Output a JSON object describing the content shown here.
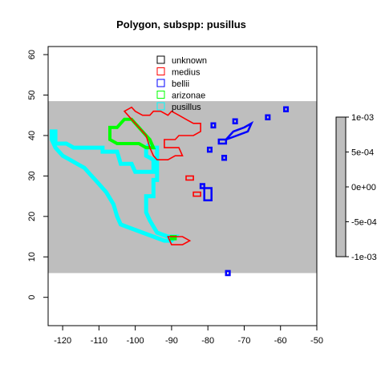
{
  "chart_data": {
    "type": "map",
    "title": "Polygon, subspp: pusillus",
    "xlabel": "",
    "ylabel": "",
    "xlim": [
      -124,
      -50
    ],
    "ylim": [
      -7,
      62
    ],
    "x_ticks": [
      -120,
      -110,
      -100,
      -90,
      -80,
      -70,
      -60,
      -50
    ],
    "y_ticks": [
      0,
      10,
      20,
      30,
      40,
      50,
      60
    ],
    "grid": false,
    "background_band": {
      "ymin": 6,
      "ymax": 48.5,
      "xmin": -124,
      "xmax": -50,
      "color": "#bebebe"
    },
    "legend": {
      "position": "top-center",
      "entries": [
        {
          "label": "unknown",
          "color": "#000000"
        },
        {
          "label": "medius",
          "color": "#ff0000"
        },
        {
          "label": "bellii",
          "color": "#0000ff"
        },
        {
          "label": "arizonae",
          "color": "#00ff00"
        },
        {
          "label": "pusillus",
          "color": "#00ffff"
        }
      ]
    },
    "colorbar": {
      "ticks": [
        "1e-03",
        "5e-04",
        "0e+00",
        "-5e-04",
        "-1e-03"
      ],
      "color": "#bebebe"
    },
    "series": [
      {
        "name": "pusillus",
        "color": "#00ffff",
        "polygons": [
          [
            [
              -123,
              41
            ],
            [
              -122,
              41
            ],
            [
              -122,
              38
            ],
            [
              -119,
              38
            ],
            [
              -117,
              37
            ],
            [
              -113,
              37
            ],
            [
              -109,
              37
            ],
            [
              -109,
              36
            ],
            [
              -105,
              36
            ],
            [
              -104,
              33
            ],
            [
              -101,
              33
            ],
            [
              -100,
              31
            ],
            [
              -95,
              31
            ],
            [
              -95,
              34
            ],
            [
              -97,
              35
            ],
            [
              -97,
              37
            ],
            [
              -96,
              38
            ],
            [
              -95,
              37
            ],
            [
              -94,
              37
            ],
            [
              -94,
              29
            ],
            [
              -95,
              29
            ],
            [
              -95,
              25
            ],
            [
              -97,
              25
            ],
            [
              -97,
              21
            ],
            [
              -96,
              19
            ],
            [
              -94,
              16
            ],
            [
              -91,
              15
            ],
            [
              -89,
              15
            ],
            [
              -90,
              14
            ],
            [
              -92,
              14
            ],
            [
              -95,
              15
            ],
            [
              -98,
              16
            ],
            [
              -104,
              18
            ],
            [
              -105,
              20
            ],
            [
              -106,
              23
            ],
            [
              -108,
              26
            ],
            [
              -111,
              29
            ],
            [
              -112,
              30
            ],
            [
              -114,
              32
            ],
            [
              -116,
              33
            ],
            [
              -118,
              34
            ],
            [
              -120,
              35
            ],
            [
              -122,
              37
            ],
            [
              -123,
              39
            ],
            [
              -123,
              41
            ]
          ]
        ]
      },
      {
        "name": "arizonae",
        "color": "#00ff00",
        "polygons": [
          [
            [
              -107,
              42
            ],
            [
              -105,
              42
            ],
            [
              -104,
              43
            ],
            [
              -103,
              44
            ],
            [
              -101,
              44
            ],
            [
              -100,
              43
            ],
            [
              -99,
              42
            ],
            [
              -97,
              40
            ],
            [
              -96,
              39
            ],
            [
              -95,
              37
            ],
            [
              -97,
              37
            ],
            [
              -99,
              38
            ],
            [
              -101,
              38
            ],
            [
              -103,
              38
            ],
            [
              -105,
              38
            ],
            [
              -107,
              39
            ],
            [
              -107,
              42
            ]
          ],
          [
            [
              -90,
              15
            ],
            [
              -89,
              15
            ],
            [
              -89,
              14.5
            ],
            [
              -90,
              14.5
            ],
            [
              -90,
              15
            ]
          ]
        ]
      },
      {
        "name": "medius",
        "color": "#ff0000",
        "polygons": [
          [
            [
              -103,
              46
            ],
            [
              -101,
              47
            ],
            [
              -100,
              46
            ],
            [
              -98,
              45
            ],
            [
              -96,
              45
            ],
            [
              -95,
              46
            ],
            [
              -93,
              46
            ],
            [
              -91,
              45
            ],
            [
              -90,
              46
            ],
            [
              -88,
              45
            ],
            [
              -86,
              44
            ],
            [
              -84,
              43
            ],
            [
              -82,
              43
            ],
            [
              -82,
              41
            ],
            [
              -84,
              40
            ],
            [
              -86,
              40
            ],
            [
              -88,
              40
            ],
            [
              -89,
              39
            ],
            [
              -92,
              39
            ],
            [
              -92,
              37
            ],
            [
              -90,
              37
            ],
            [
              -88,
              37
            ],
            [
              -87,
              35
            ],
            [
              -89,
              35
            ],
            [
              -91,
              34
            ],
            [
              -94,
              34
            ],
            [
              -95,
              35
            ],
            [
              -96,
              37
            ],
            [
              -97,
              40
            ],
            [
              -99,
              42
            ],
            [
              -101,
              44
            ],
            [
              -103,
              46
            ]
          ],
          [
            [
              -86,
              30
            ],
            [
              -84,
              30
            ],
            [
              -84,
              29
            ],
            [
              -86,
              29
            ],
            [
              -86,
              30
            ]
          ],
          [
            [
              -84,
              26
            ],
            [
              -82,
              26
            ],
            [
              -82,
              25
            ],
            [
              -84,
              25
            ],
            [
              -84,
              26
            ]
          ],
          [
            [
              -91,
              15
            ],
            [
              -87,
              15
            ],
            [
              -85,
              14
            ],
            [
              -87,
              13
            ],
            [
              -90,
              13
            ],
            [
              -91,
              15
            ]
          ]
        ]
      },
      {
        "name": "bellii",
        "color": "#0000ff",
        "polygons": [
          [
            [
              -59,
              47
            ],
            [
              -58,
              47
            ],
            [
              -58,
              46
            ],
            [
              -59,
              46
            ],
            [
              -59,
              47
            ]
          ],
          [
            [
              -64,
              45
            ],
            [
              -63,
              45
            ],
            [
              -63,
              44
            ],
            [
              -64,
              44
            ],
            [
              -64,
              45
            ]
          ],
          [
            [
              -73,
              44
            ],
            [
              -72,
              44
            ],
            [
              -72,
              43
            ],
            [
              -73,
              43
            ],
            [
              -73,
              44
            ]
          ],
          [
            [
              -70,
              42
            ],
            [
              -68,
              43
            ],
            [
              -69,
              41
            ],
            [
              -72,
              40
            ],
            [
              -75,
              39
            ],
            [
              -73,
              41
            ],
            [
              -70,
              42
            ]
          ],
          [
            [
              -79,
              43
            ],
            [
              -78,
              43
            ],
            [
              -78,
              42
            ],
            [
              -79,
              42
            ],
            [
              -79,
              43
            ]
          ],
          [
            [
              -77,
              39
            ],
            [
              -75,
              39
            ],
            [
              -75,
              38
            ],
            [
              -77,
              38
            ],
            [
              -77,
              39
            ]
          ],
          [
            [
              -80,
              37
            ],
            [
              -79,
              37
            ],
            [
              -79,
              36
            ],
            [
              -80,
              36
            ],
            [
              -80,
              37
            ]
          ],
          [
            [
              -76,
              35
            ],
            [
              -75,
              35
            ],
            [
              -75,
              34
            ],
            [
              -76,
              34
            ],
            [
              -76,
              35
            ]
          ],
          [
            [
              -82,
              28
            ],
            [
              -81,
              28
            ],
            [
              -81,
              27
            ],
            [
              -82,
              27
            ],
            [
              -82,
              28
            ]
          ],
          [
            [
              -81,
              27
            ],
            [
              -79,
              27
            ],
            [
              -79,
              24
            ],
            [
              -81,
              24
            ],
            [
              -81,
              27
            ]
          ],
          [
            [
              -75,
              6.5
            ],
            [
              -74,
              6.5
            ],
            [
              -74,
              5.5
            ],
            [
              -75,
              5.5
            ],
            [
              -75,
              6.5
            ]
          ]
        ]
      }
    ]
  }
}
